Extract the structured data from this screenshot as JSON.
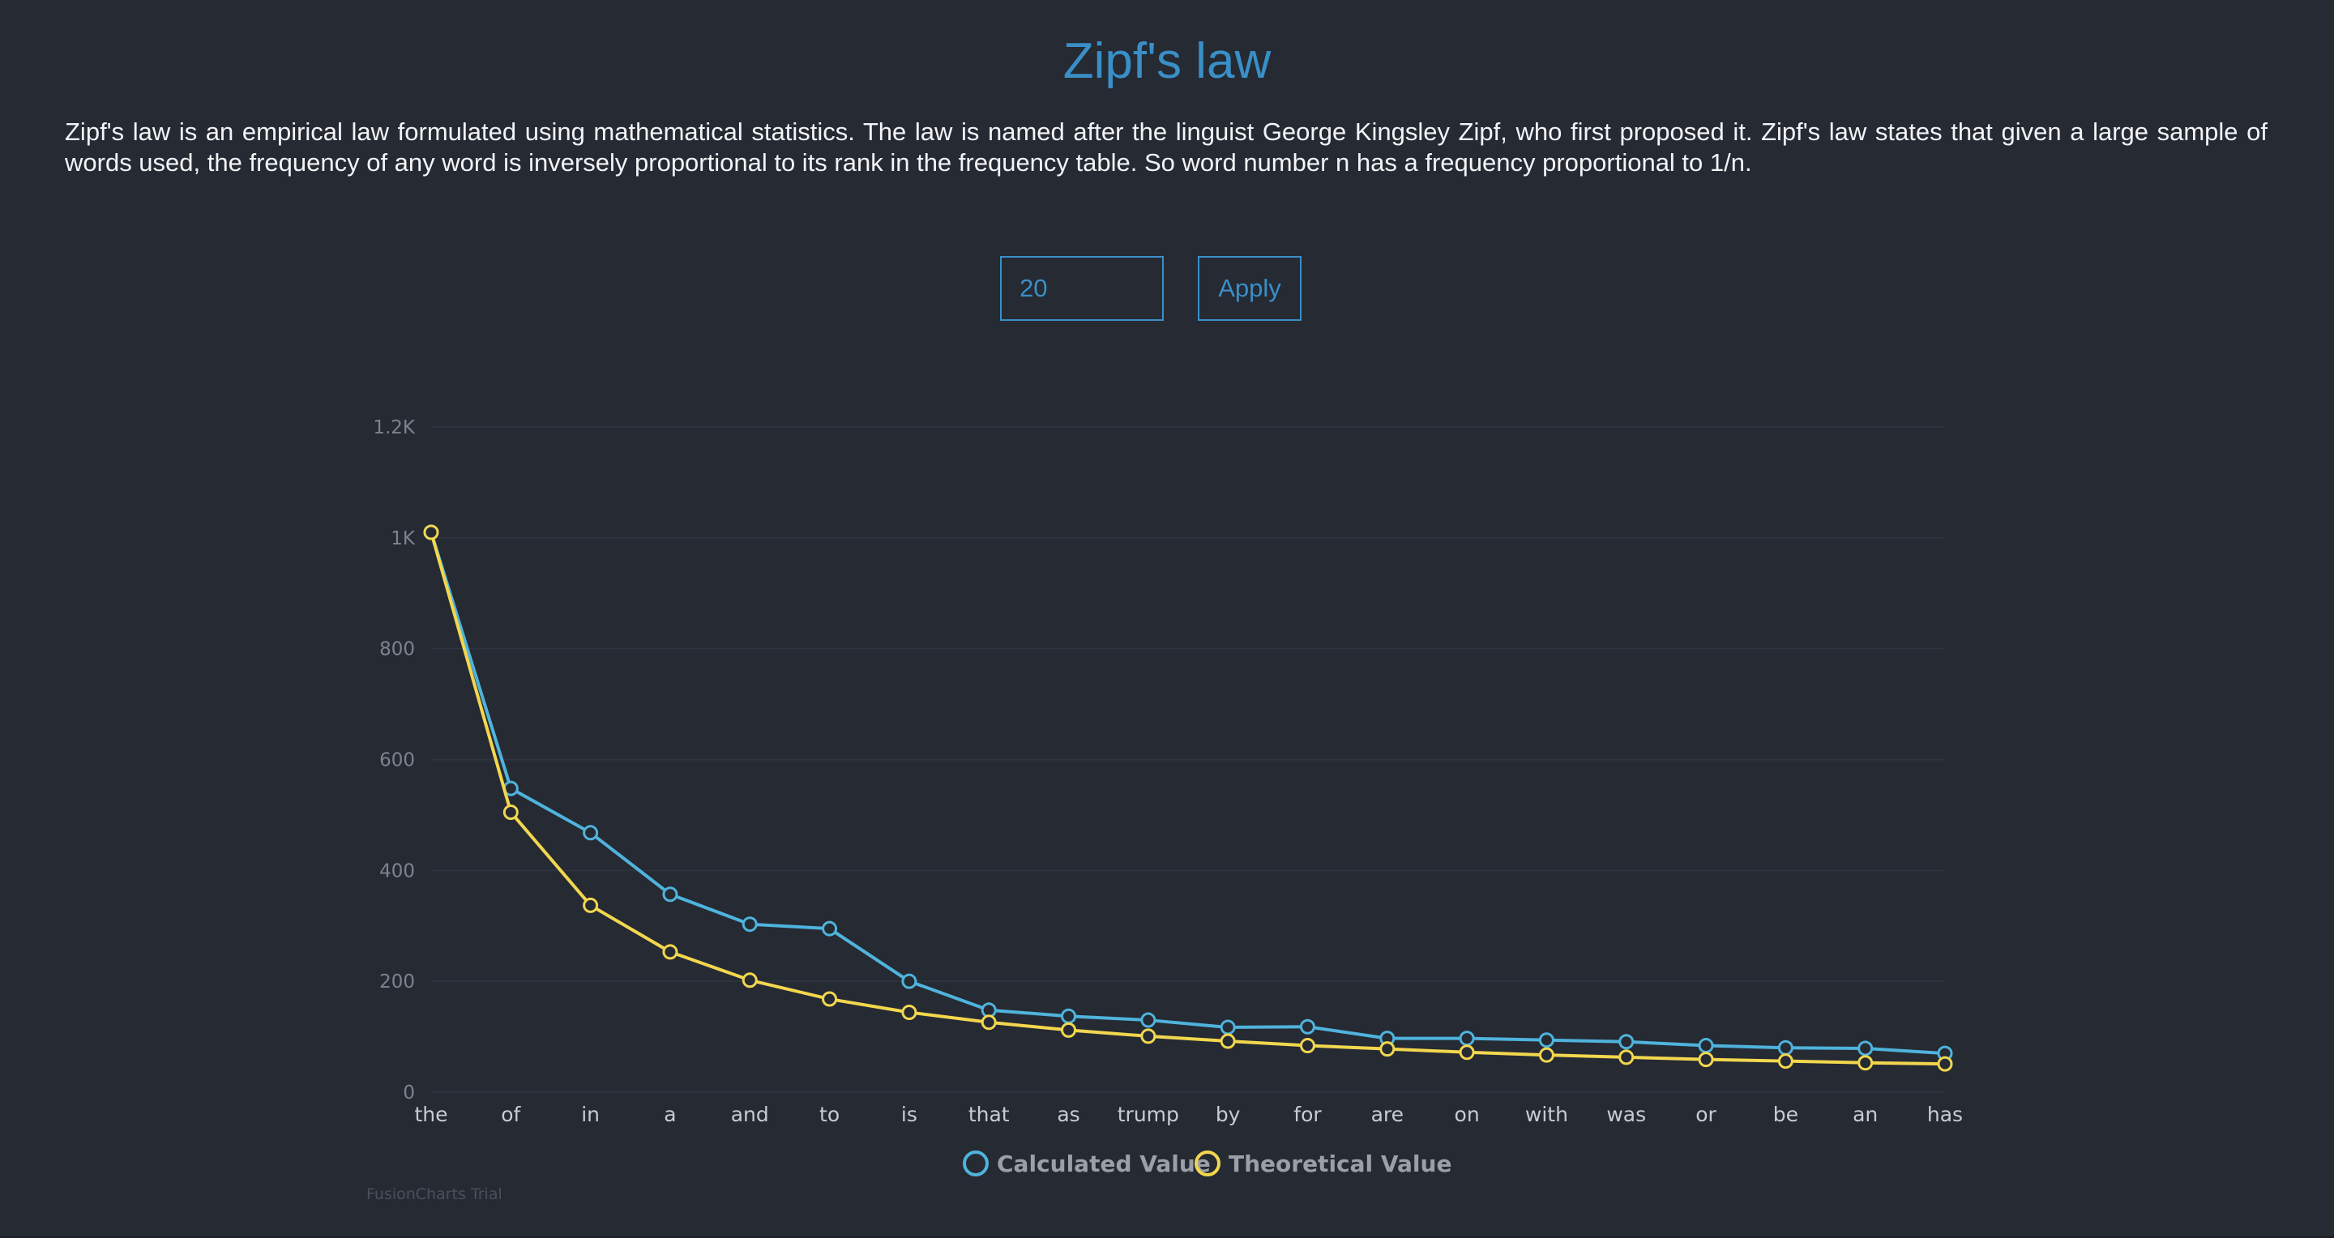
{
  "header": {
    "title": "Zipf's law",
    "description": "Zipf's law is an empirical law formulated using mathematical statistics. The law is named after the linguist George Kingsley Zipf, who first proposed it. Zipf's law states that given a large sample of words used, the frequency of any word is inversely proportional to its rank in the frequency table. So word number n has a frequency proportional to 1/n."
  },
  "controls": {
    "word_count_value": "20",
    "apply_label": "Apply"
  },
  "chart_data": {
    "type": "line",
    "categories": [
      "the",
      "of",
      "in",
      "a",
      "and",
      "to",
      "is",
      "that",
      "as",
      "trump",
      "by",
      "for",
      "are",
      "on",
      "with",
      "was",
      "or",
      "be",
      "an",
      "has"
    ],
    "series": [
      {
        "name": "Calculated Value",
        "color": "#4fb3dc",
        "values": [
          1010,
          548,
          468,
          357,
          303,
          295,
          200,
          148,
          137,
          130,
          117,
          118,
          97,
          97,
          94,
          91,
          84,
          80,
          79,
          70
        ]
      },
      {
        "name": "Theoretical Value",
        "color": "#f2d74e",
        "values": [
          1010,
          505,
          337,
          253,
          202,
          168,
          144,
          126,
          112,
          101,
          92,
          84,
          78,
          72,
          67,
          63,
          59,
          56,
          53,
          51
        ]
      }
    ],
    "y_ticks": [
      {
        "value": 0,
        "label": "0"
      },
      {
        "value": 200,
        "label": "200"
      },
      {
        "value": 400,
        "label": "400"
      },
      {
        "value": 600,
        "label": "600"
      },
      {
        "value": 800,
        "label": "800"
      },
      {
        "value": 1000,
        "label": "1K"
      },
      {
        "value": 1200,
        "label": "1.2K"
      }
    ],
    "ylim": [
      0,
      1200
    ],
    "grid": true,
    "legend_position": "bottom-center",
    "title": "",
    "xlabel": "",
    "ylabel": ""
  },
  "watermark": "FusionCharts Trial"
}
